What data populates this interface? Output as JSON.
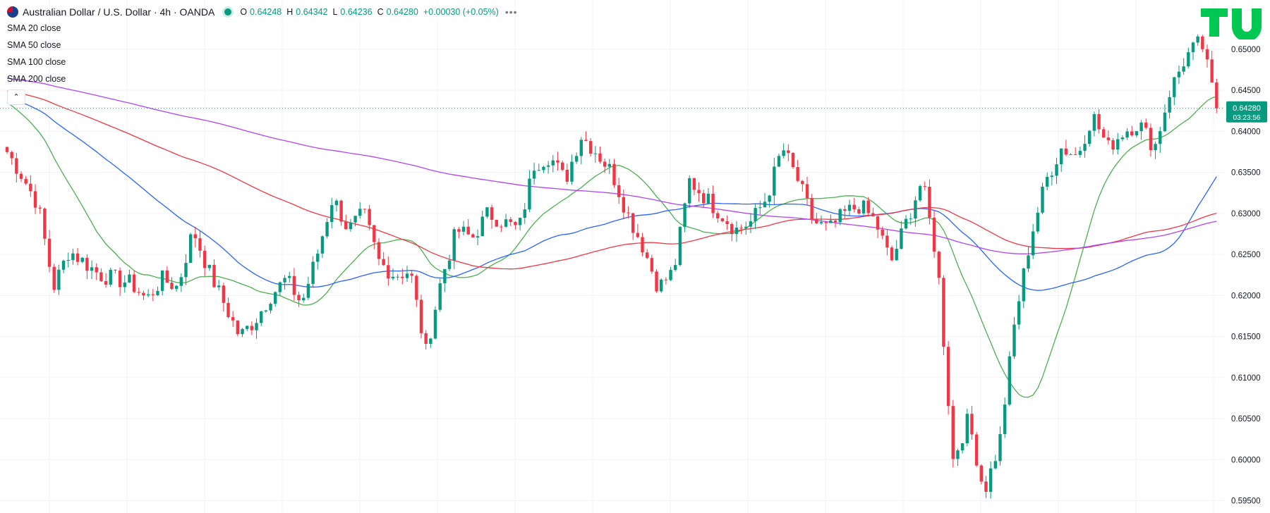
{
  "header": {
    "symbol": "Australian Dollar / U.S. Dollar · 4h · OANDA",
    "ohlc": [
      {
        "k": "O",
        "v": "0.64248"
      },
      {
        "k": "H",
        "v": "0.64342"
      },
      {
        "k": "L",
        "v": "0.64236"
      },
      {
        "k": "C",
        "v": "0.64280"
      }
    ],
    "change": "+0.00030 (+0.05%)",
    "more": "•••"
  },
  "indicators": [
    "SMA 20 close",
    "SMA 50 close",
    "SMA 100 close",
    "SMA 200 close"
  ],
  "collapse_label": "⌃",
  "logo": "TV",
  "price_badge": {
    "price": "0.64280",
    "countdown": "03:23:56",
    "color": "#089981"
  },
  "colors": {
    "up": "#089981",
    "down": "#f23645",
    "sma20": "#4caf50",
    "sma50": "#2962ff",
    "sma100": "#f23645",
    "sma200": "#b044f5",
    "grid": "#f0f3fa",
    "logo": "#00c853"
  },
  "chart_data": {
    "type": "candlestick",
    "symbol": "AUDUSD",
    "interval": "4h",
    "ylim": [
      0.5935,
      0.656
    ],
    "y_ticks": [
      "0.65000",
      "0.64500",
      "0.64000",
      "0.63500",
      "0.63000",
      "0.62500",
      "0.62000",
      "0.61500",
      "0.61000",
      "0.60500",
      "0.60000",
      "0.59500"
    ],
    "last_price": 0.6428,
    "close_path": [
      0.6375,
      0.6345,
      0.631,
      0.621,
      0.6255,
      0.624,
      0.6225,
      0.622,
      0.6215,
      0.6195,
      0.622,
      0.621,
      0.628,
      0.623,
      0.619,
      0.615,
      0.617,
      0.62,
      0.622,
      0.619,
      0.625,
      0.632,
      0.628,
      0.63,
      0.624,
      0.6225,
      0.623,
      0.613,
      0.622,
      0.628,
      0.627,
      0.63,
      0.629,
      0.628,
      0.636,
      0.637,
      0.634,
      0.6395,
      0.6375,
      0.635,
      0.63,
      0.626,
      0.621,
      0.623,
      0.634,
      0.632,
      0.63,
      0.628,
      0.629,
      0.632,
      0.638,
      0.634,
      0.629,
      0.628,
      0.63,
      0.631,
      0.629,
      0.624,
      0.629,
      0.634,
      0.624,
      0.6,
      0.605,
      0.596,
      0.602,
      0.617,
      0.627,
      0.634,
      0.638,
      0.637,
      0.642,
      0.638,
      0.64,
      0.641,
      0.638,
      0.645,
      0.649,
      0.651,
      0.6428
    ],
    "series": [
      {
        "name": "SMA 20 close",
        "color": "#4caf50"
      },
      {
        "name": "SMA 50 close",
        "color": "#2962ff"
      },
      {
        "name": "SMA 100 close",
        "color": "#f23645"
      },
      {
        "name": "SMA 200 close",
        "color": "#b044f5"
      }
    ]
  }
}
